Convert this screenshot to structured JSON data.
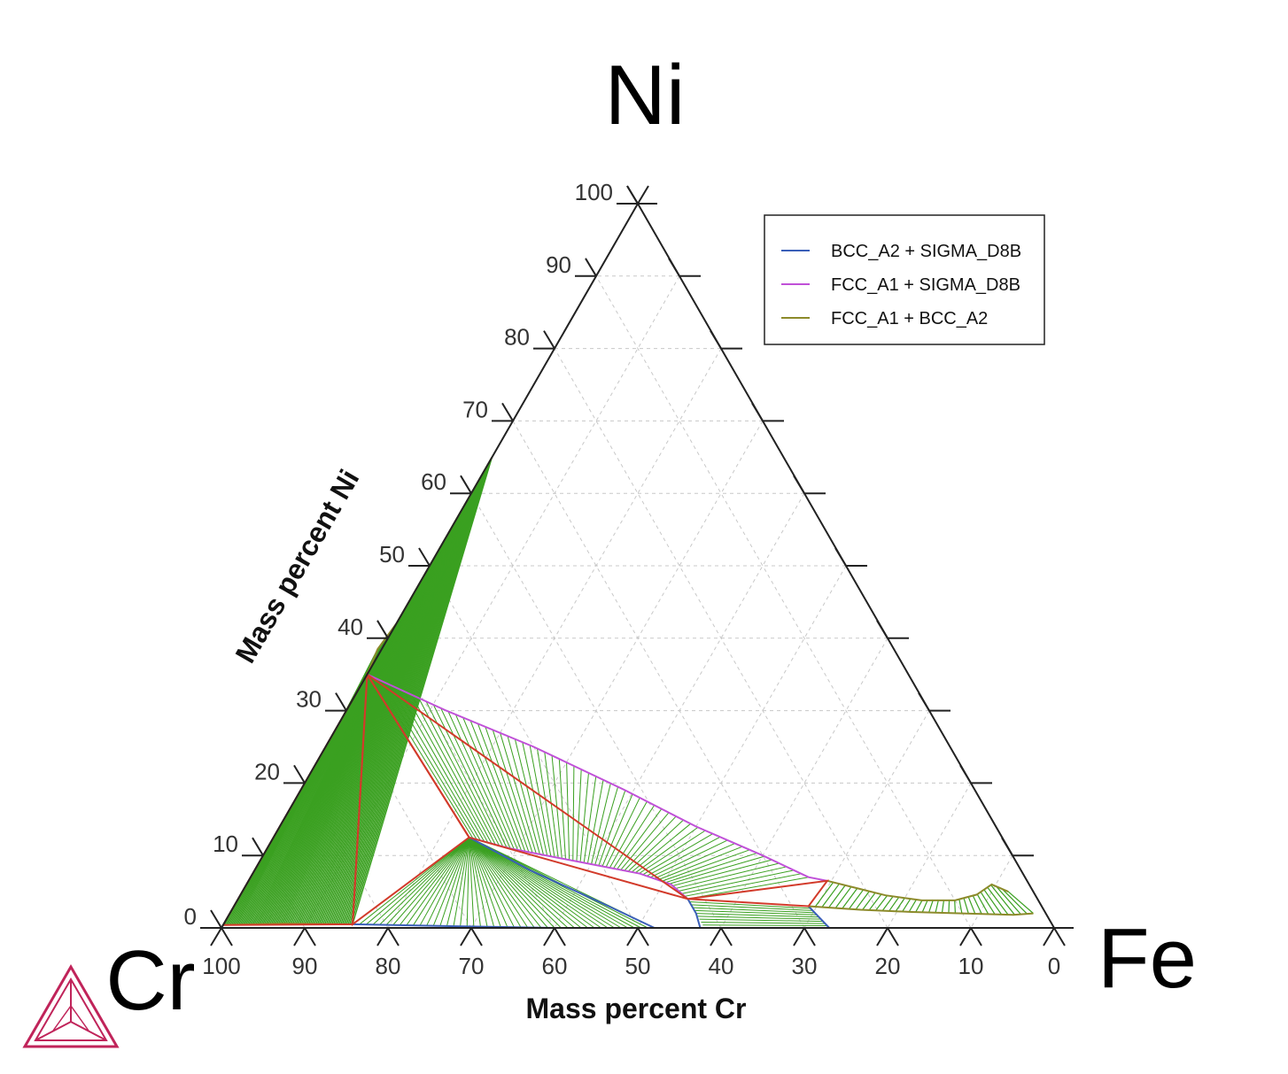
{
  "chart_data": {
    "type": "ternary",
    "apex_labels": {
      "top": "Ni",
      "left": "Cr",
      "right": "Fe"
    },
    "axes": {
      "bottom": {
        "label": "Mass percent Cr",
        "ticks": [
          "100",
          "90",
          "80",
          "70",
          "60",
          "50",
          "40",
          "30",
          "20",
          "10",
          "0"
        ]
      },
      "left": {
        "label": "Mass percent Ni",
        "ticks": [
          "0",
          "10",
          "20",
          "30",
          "40",
          "50",
          "60",
          "70",
          "80",
          "90",
          "100"
        ]
      }
    },
    "grid": true,
    "legend": {
      "position": "top-right",
      "entries": [
        {
          "label": "BCC_A2 + SIGMA_D8B",
          "color": "#3a5fb8"
        },
        {
          "label": "FCC_A1 + SIGMA_D8B",
          "color": "#c050d8"
        },
        {
          "label": "FCC_A1 + BCC_A2",
          "color": "#8c8a2a"
        }
      ]
    },
    "colors": {
      "tieline": "#3aa020",
      "three_phase": "#d23a2a",
      "frame": "#222222",
      "grid": "#c8c8c8"
    },
    "boundaries": [
      {
        "name": "FCC_A1 + BCC_A2",
        "color": "#8c8a2a",
        "points": [
          [
            65,
            35
          ],
          [
            62,
            38.5
          ],
          [
            58,
            42
          ],
          [
            55,
            45
          ],
          [
            52,
            48
          ],
          [
            48,
            52
          ],
          [
            44,
            56
          ],
          [
            40,
            60
          ],
          [
            37,
            63
          ],
          [
            35,
            65
          ]
        ]
      },
      {
        "name": "FCC_A1 + BCC_A2",
        "color": "#8c8a2a",
        "points": [
          [
            99.6,
            0.4
          ],
          [
            92,
            0.6
          ],
          [
            84,
            0.5
          ]
        ]
      },
      {
        "name": "FCC_A1 + SIGMA_D8B",
        "color": "#c050d8",
        "points": [
          [
            65,
            35
          ],
          [
            58,
            30
          ],
          [
            50,
            25
          ],
          [
            42,
            19
          ],
          [
            36,
            14
          ],
          [
            30,
            10
          ],
          [
            26,
            7
          ],
          [
            24,
            6.5
          ]
        ]
      },
      {
        "name": "FCC_A1 + SIGMA_D8B",
        "color": "#c050d8",
        "points": [
          [
            64,
            12.5
          ],
          [
            60,
            11
          ],
          [
            52,
            9
          ],
          [
            46,
            7.5
          ],
          [
            43,
            6
          ],
          [
            42,
            4
          ]
        ]
      },
      {
        "name": "BCC_A2 + SIGMA_D8B",
        "color": "#3a5fb8",
        "points": [
          [
            64,
            12.5
          ],
          [
            59,
            8
          ],
          [
            52,
            3
          ],
          [
            48,
            0
          ]
        ]
      },
      {
        "name": "BCC_A2 + SIGMA_D8B",
        "color": "#3a5fb8",
        "points": [
          [
            84,
            0.5
          ],
          [
            70,
            0.2
          ],
          [
            60,
            0
          ],
          [
            48,
            0
          ]
        ]
      },
      {
        "name": "BCC_A2 + SIGMA_D8B",
        "color": "#3a5fb8",
        "points": [
          [
            42,
            4
          ],
          [
            42,
            2
          ],
          [
            42.5,
            0
          ]
        ]
      },
      {
        "name": "BCC_A2 + SIGMA_D8B",
        "color": "#3a5fb8",
        "points": [
          [
            28,
            3
          ],
          [
            27.5,
            1.5
          ],
          [
            27,
            0
          ]
        ]
      },
      {
        "name": "FCC_A1 + BCC_A2",
        "color": "#8c8a2a",
        "points": [
          [
            24,
            6.5
          ],
          [
            21,
            5.5
          ],
          [
            18,
            4.5
          ],
          [
            14,
            3.8
          ],
          [
            10,
            3.8
          ],
          [
            7,
            4.6
          ],
          [
            4.5,
            6
          ],
          [
            3,
            5
          ]
        ]
      },
      {
        "name": "FCC_A1 + BCC_A2",
        "color": "#8c8a2a",
        "points": [
          [
            28,
            3
          ],
          [
            22,
            2.5
          ],
          [
            16,
            2.2
          ],
          [
            10,
            2
          ],
          [
            4,
            1.8
          ],
          [
            1.5,
            2
          ]
        ]
      }
    ],
    "tie_triangles": [
      [
        [
          99.6,
          0.4
        ],
        [
          65,
          35
        ],
        [
          84,
          0.5
        ]
      ],
      [
        [
          84,
          0.5
        ],
        [
          65,
          35
        ],
        [
          64,
          12.5
        ]
      ],
      [
        [
          64,
          12.5
        ],
        [
          65,
          35
        ],
        [
          42,
          4
        ]
      ],
      [
        [
          42,
          4
        ],
        [
          24,
          6.5
        ],
        [
          28,
          3
        ]
      ]
    ]
  }
}
